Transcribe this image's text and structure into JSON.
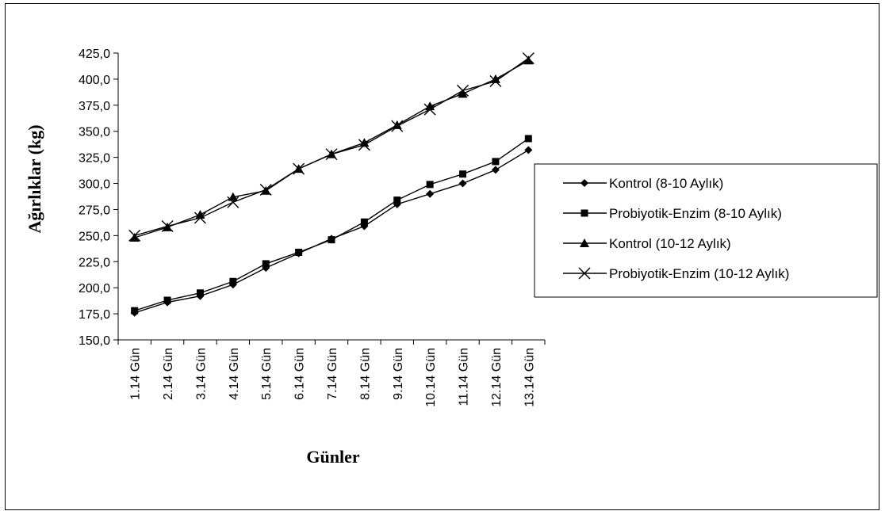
{
  "chart_data": {
    "type": "line",
    "title": "",
    "xlabel": "Günler",
    "ylabel": "Ağırlıklar (kg)",
    "ylim": [
      150,
      425
    ],
    "ytick_labels": [
      "150,0",
      "175,0",
      "200,0",
      "225,0",
      "250,0",
      "275,0",
      "300,0",
      "325,0",
      "350,0",
      "375,0",
      "400,0",
      "425,0"
    ],
    "categories": [
      "1.14 Gün",
      "2.14 Gün",
      "3.14 Gün",
      "4.14 Gün",
      "5.14 Gün",
      "6.14 Gün",
      "7.14 Gün",
      "8.14 Gün",
      "9.14 Gün",
      "10.14 Gün",
      "11.14 Gün",
      "12.14 Gün",
      "13.14 Gün"
    ],
    "grid": false,
    "legend_position": "right",
    "series": [
      {
        "name": "Kontrol (8-10 Aylık)",
        "marker": "diamond",
        "color": "#000000",
        "values": [
          176,
          186,
          192,
          203,
          219,
          233,
          247,
          259,
          280,
          290,
          300,
          313,
          332
        ]
      },
      {
        "name": "Probiyotik-Enzim (8-10 Aylık)",
        "marker": "square",
        "color": "#000000",
        "values": [
          178,
          188,
          195,
          206,
          223,
          234,
          246,
          263,
          284,
          299,
          309,
          321,
          343
        ]
      },
      {
        "name": "Kontrol (10-12 Aylık)",
        "marker": "triangle",
        "color": "#000000",
        "values": [
          248,
          258,
          270,
          287,
          293,
          314,
          328,
          339,
          356,
          374,
          386,
          400,
          418
        ]
      },
      {
        "name": "Probiyotik-Enzim (10-12 Aylık)",
        "marker": "cross",
        "color": "#000000",
        "values": [
          250,
          259,
          267,
          282,
          294,
          314,
          328,
          337,
          355,
          371,
          389,
          398,
          420
        ]
      }
    ]
  }
}
